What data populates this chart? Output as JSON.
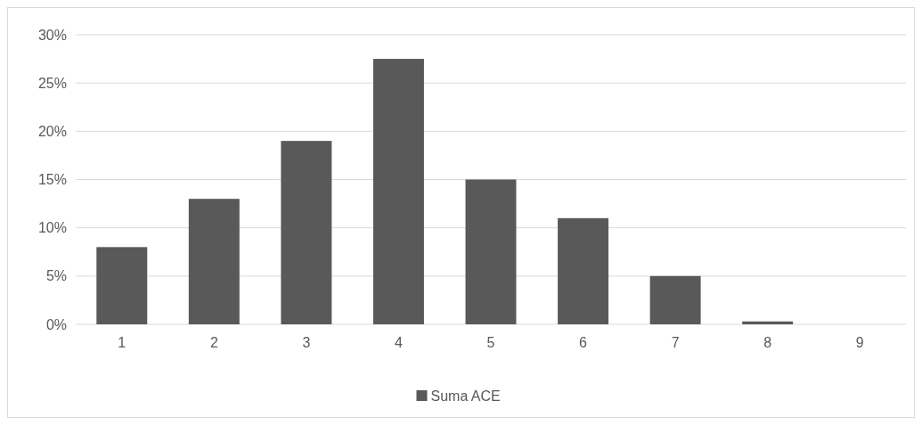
{
  "chart_data": {
    "type": "bar",
    "categories": [
      "1",
      "2",
      "3",
      "4",
      "5",
      "6",
      "7",
      "8",
      "9"
    ],
    "series": [
      {
        "name": "Suma ACE",
        "color": "#595959",
        "values": [
          8,
          13,
          19,
          27.5,
          15,
          11,
          5,
          0.3,
          0
        ]
      }
    ],
    "ylim": [
      0,
      30
    ],
    "yticks": [
      {
        "value": 0,
        "label": "0%"
      },
      {
        "value": 5,
        "label": "5%"
      },
      {
        "value": 10,
        "label": "10%"
      },
      {
        "value": 15,
        "label": "15%"
      },
      {
        "value": 20,
        "label": "20%"
      },
      {
        "value": 25,
        "label": "25%"
      },
      {
        "value": 30,
        "label": "30%"
      }
    ],
    "grid": "y",
    "legend": "bottom"
  }
}
